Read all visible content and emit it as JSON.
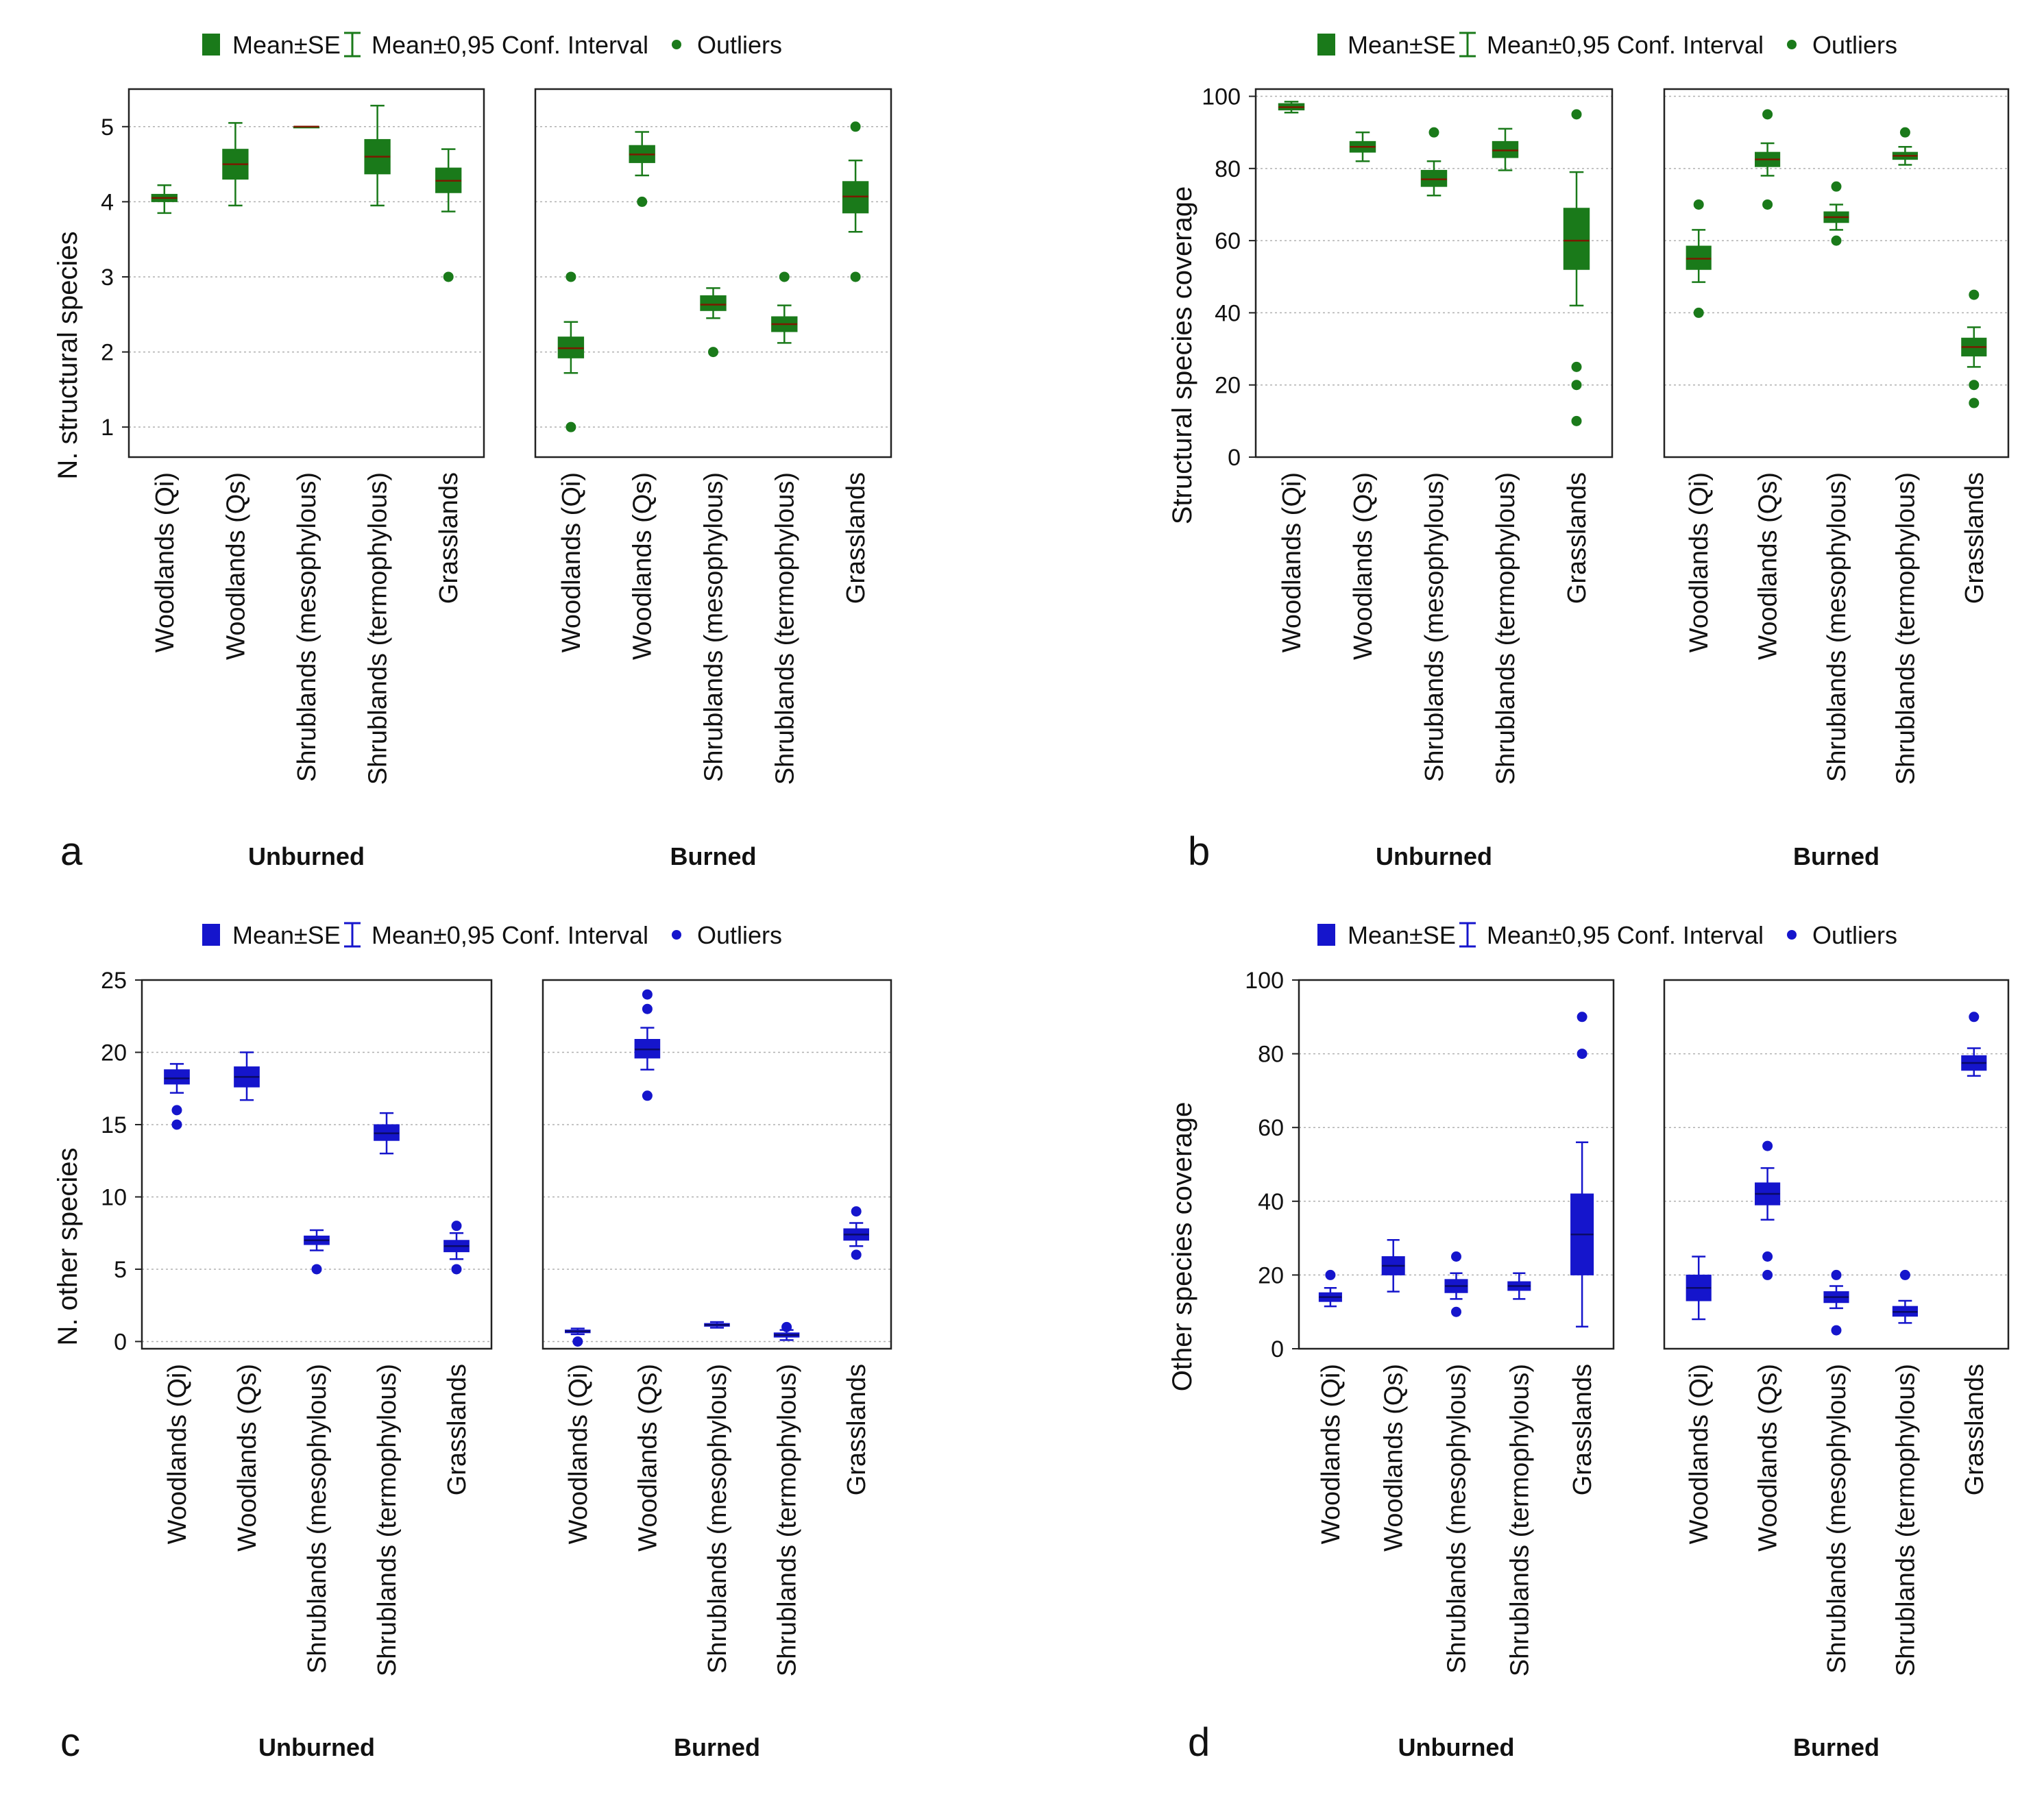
{
  "legend": {
    "mean_se": "Mean±SE",
    "ci": "Mean±0,95 Conf. Interval",
    "outliers": "Outliers"
  },
  "categories": [
    "Woodlands (Qi)",
    "Woodlands (Qs)",
    "Shrublands (mesophylous)",
    "Shrublands (termophylous)",
    "Grasslands"
  ],
  "groups": [
    "Unburned",
    "Burned"
  ],
  "chart_data": [
    {
      "type": "box",
      "panel": "a",
      "color": "#1a7a1a",
      "ylabel": "N. structural species",
      "ylim": [
        0.6,
        5.5
      ],
      "yticks": [
        "1",
        "2",
        "3",
        "4",
        "5"
      ],
      "grid": true,
      "groups": [
        {
          "name": "Unburned",
          "series": [
            {
              "category": "Woodlands (Qi)",
              "mean": 4.05,
              "se": [
                4.0,
                4.1
              ],
              "ci": [
                3.85,
                4.22
              ],
              "outliers": []
            },
            {
              "category": "Woodlands (Qs)",
              "mean": 4.5,
              "se": [
                4.3,
                4.7
              ],
              "ci": [
                3.95,
                5.05
              ],
              "outliers": []
            },
            {
              "category": "Shrublands (mesophylous)",
              "mean": 5.0,
              "se": [
                5.0,
                5.0
              ],
              "ci": [
                5.0,
                5.0
              ],
              "outliers": []
            },
            {
              "category": "Shrublands (termophylous)",
              "mean": 4.6,
              "se": [
                4.37,
                4.83
              ],
              "ci": [
                3.95,
                5.28
              ],
              "outliers": []
            },
            {
              "category": "Grasslands",
              "mean": 4.28,
              "se": [
                4.12,
                4.45
              ],
              "ci": [
                3.87,
                4.7
              ],
              "outliers": [
                3
              ]
            }
          ]
        },
        {
          "name": "Burned",
          "series": [
            {
              "category": "Woodlands (Qi)",
              "mean": 2.05,
              "se": [
                1.92,
                2.2
              ],
              "ci": [
                1.72,
                2.4
              ],
              "outliers": [
                3,
                1
              ]
            },
            {
              "category": "Woodlands (Qs)",
              "mean": 4.63,
              "se": [
                4.52,
                4.75
              ],
              "ci": [
                4.35,
                4.93
              ],
              "outliers": [
                4
              ]
            },
            {
              "category": "Shrublands (mesophylous)",
              "mean": 2.63,
              "se": [
                2.55,
                2.75
              ],
              "ci": [
                2.45,
                2.85
              ],
              "outliers": [
                2
              ]
            },
            {
              "category": "Shrublands (termophylous)",
              "mean": 2.37,
              "se": [
                2.27,
                2.47
              ],
              "ci": [
                2.12,
                2.62
              ],
              "outliers": [
                3
              ]
            },
            {
              "category": "Grasslands",
              "mean": 4.07,
              "se": [
                3.85,
                4.27
              ],
              "ci": [
                3.6,
                4.55
              ],
              "outliers": [
                5,
                3
              ]
            }
          ]
        }
      ]
    },
    {
      "type": "box",
      "panel": "b",
      "color": "#1a7a1a",
      "ylabel": "Structural species coverage",
      "ylim": [
        0,
        102
      ],
      "yticks": [
        "0",
        "20",
        "40",
        "60",
        "80",
        "100"
      ],
      "grid": true,
      "groups": [
        {
          "name": "Unburned",
          "series": [
            {
              "category": "Woodlands (Qi)",
              "mean": 97,
              "se": [
                96.2,
                98
              ],
              "ci": [
                95.5,
                98.5
              ],
              "outliers": []
            },
            {
              "category": "Woodlands (Qs)",
              "mean": 86,
              "se": [
                84.5,
                87.5
              ],
              "ci": [
                82,
                90
              ],
              "outliers": []
            },
            {
              "category": "Shrublands (mesophylous)",
              "mean": 77,
              "se": [
                75,
                79.5
              ],
              "ci": [
                72.5,
                82
              ],
              "outliers": [
                90
              ]
            },
            {
              "category": "Shrublands (termophylous)",
              "mean": 85,
              "se": [
                83,
                87.5
              ],
              "ci": [
                79.5,
                91
              ],
              "outliers": []
            },
            {
              "category": "Grasslands",
              "mean": 60,
              "se": [
                52,
                69
              ],
              "ci": [
                42,
                79
              ],
              "outliers": [
                95,
                25,
                20,
                10
              ]
            }
          ]
        },
        {
          "name": "Burned",
          "series": [
            {
              "category": "Woodlands (Qi)",
              "mean": 55,
              "se": [
                52,
                58.5
              ],
              "ci": [
                48.5,
                63
              ],
              "outliers": [
                70,
                40
              ]
            },
            {
              "category": "Woodlands (Qs)",
              "mean": 82.5,
              "se": [
                80.5,
                84.5
              ],
              "ci": [
                78,
                87
              ],
              "outliers": [
                95,
                70
              ]
            },
            {
              "category": "Shrublands (mesophylous)",
              "mean": 66.5,
              "se": [
                65,
                68
              ],
              "ci": [
                63,
                70
              ],
              "outliers": [
                75,
                60
              ]
            },
            {
              "category": "Shrublands (termophylous)",
              "mean": 83.5,
              "se": [
                82.5,
                84.5
              ],
              "ci": [
                81,
                86
              ],
              "outliers": [
                90
              ]
            },
            {
              "category": "Grasslands",
              "mean": 30.5,
              "se": [
                28,
                33
              ],
              "ci": [
                25,
                36
              ],
              "outliers": [
                45,
                20,
                15
              ]
            }
          ]
        }
      ]
    },
    {
      "type": "box",
      "panel": "c",
      "color": "#1515cc",
      "ylabel": "N. other species",
      "ylim": [
        -0.5,
        25
      ],
      "yticks": [
        "0",
        "5",
        "10",
        "15",
        "20",
        "25"
      ],
      "grid": true,
      "groups": [
        {
          "name": "Unburned",
          "series": [
            {
              "category": "Woodlands (Qi)",
              "mean": 18.2,
              "se": [
                17.8,
                18.8
              ],
              "ci": [
                17.2,
                19.2
              ],
              "outliers": [
                16,
                15
              ]
            },
            {
              "category": "Woodlands (Qs)",
              "mean": 18.3,
              "se": [
                17.6,
                19.0
              ],
              "ci": [
                16.7,
                20
              ],
              "outliers": []
            },
            {
              "category": "Shrublands (mesophylous)",
              "mean": 7.0,
              "se": [
                6.7,
                7.3
              ],
              "ci": [
                6.3,
                7.7
              ],
              "outliers": [
                5
              ]
            },
            {
              "category": "Shrublands (termophylous)",
              "mean": 14.4,
              "se": [
                13.9,
                15.0
              ],
              "ci": [
                13.0,
                15.8
              ],
              "outliers": []
            },
            {
              "category": "Grasslands",
              "mean": 6.6,
              "se": [
                6.2,
                7.0
              ],
              "ci": [
                5.7,
                7.5
              ],
              "outliers": [
                8,
                5
              ]
            }
          ]
        },
        {
          "name": "Burned",
          "series": [
            {
              "category": "Woodlands (Qi)",
              "mean": 0.7,
              "se": [
                0.6,
                0.8
              ],
              "ci": [
                0.5,
                0.9
              ],
              "outliers": [
                0
              ]
            },
            {
              "category": "Woodlands (Qs)",
              "mean": 20.2,
              "se": [
                19.6,
                20.9
              ],
              "ci": [
                18.8,
                21.7
              ],
              "outliers": [
                24,
                23,
                17
              ]
            },
            {
              "category": "Shrublands (mesophylous)",
              "mean": 1.15,
              "se": [
                1.05,
                1.25
              ],
              "ci": [
                0.95,
                1.35
              ],
              "outliers": []
            },
            {
              "category": "Shrublands (termophylous)",
              "mean": 0.45,
              "se": [
                0.3,
                0.6
              ],
              "ci": [
                0.1,
                0.8
              ],
              "outliers": [
                1
              ]
            },
            {
              "category": "Grasslands",
              "mean": 7.4,
              "se": [
                7.0,
                7.8
              ],
              "ci": [
                6.6,
                8.2
              ],
              "outliers": [
                9,
                6
              ]
            }
          ]
        }
      ]
    },
    {
      "type": "box",
      "panel": "d",
      "color": "#1515cc",
      "ylabel": "Other species coverage",
      "ylim": [
        0,
        100
      ],
      "yticks": [
        "0",
        "20",
        "40",
        "60",
        "80",
        "100"
      ],
      "grid": true,
      "groups": [
        {
          "name": "Unburned",
          "series": [
            {
              "category": "Woodlands (Qi)",
              "mean": 14,
              "se": [
                12.8,
                15.2
              ],
              "ci": [
                11.5,
                16.5
              ],
              "outliers": [
                20
              ]
            },
            {
              "category": "Woodlands (Qs)",
              "mean": 22.5,
              "se": [
                20,
                25
              ],
              "ci": [
                15.5,
                29.5
              ],
              "outliers": []
            },
            {
              "category": "Shrublands (mesophylous)",
              "mean": 17,
              "se": [
                15.2,
                18.8
              ],
              "ci": [
                13.5,
                20.5
              ],
              "outliers": [
                25,
                10
              ]
            },
            {
              "category": "Shrublands (termophylous)",
              "mean": 17,
              "se": [
                15.8,
                18.2
              ],
              "ci": [
                13.5,
                20.5
              ],
              "outliers": []
            },
            {
              "category": "Grasslands",
              "mean": 31,
              "se": [
                20,
                42
              ],
              "ci": [
                6,
                56
              ],
              "outliers": [
                90,
                80
              ]
            }
          ]
        },
        {
          "name": "Burned",
          "series": [
            {
              "category": "Woodlands (Qi)",
              "mean": 16.5,
              "se": [
                13,
                20
              ],
              "ci": [
                8,
                25
              ],
              "outliers": []
            },
            {
              "category": "Woodlands (Qs)",
              "mean": 42,
              "se": [
                39,
                45
              ],
              "ci": [
                35,
                49
              ],
              "outliers": [
                55,
                25,
                20
              ]
            },
            {
              "category": "Shrublands (mesophylous)",
              "mean": 14,
              "se": [
                12.5,
                15.5
              ],
              "ci": [
                11,
                17
              ],
              "outliers": [
                20,
                5
              ]
            },
            {
              "category": "Shrublands (termophylous)",
              "mean": 10,
              "se": [
                8.8,
                11.5
              ],
              "ci": [
                7,
                13
              ],
              "outliers": [
                20
              ]
            },
            {
              "category": "Grasslands",
              "mean": 77.5,
              "se": [
                75.5,
                79.5
              ],
              "ci": [
                74,
                81.5
              ],
              "outliers": [
                90
              ]
            }
          ]
        }
      ]
    }
  ]
}
